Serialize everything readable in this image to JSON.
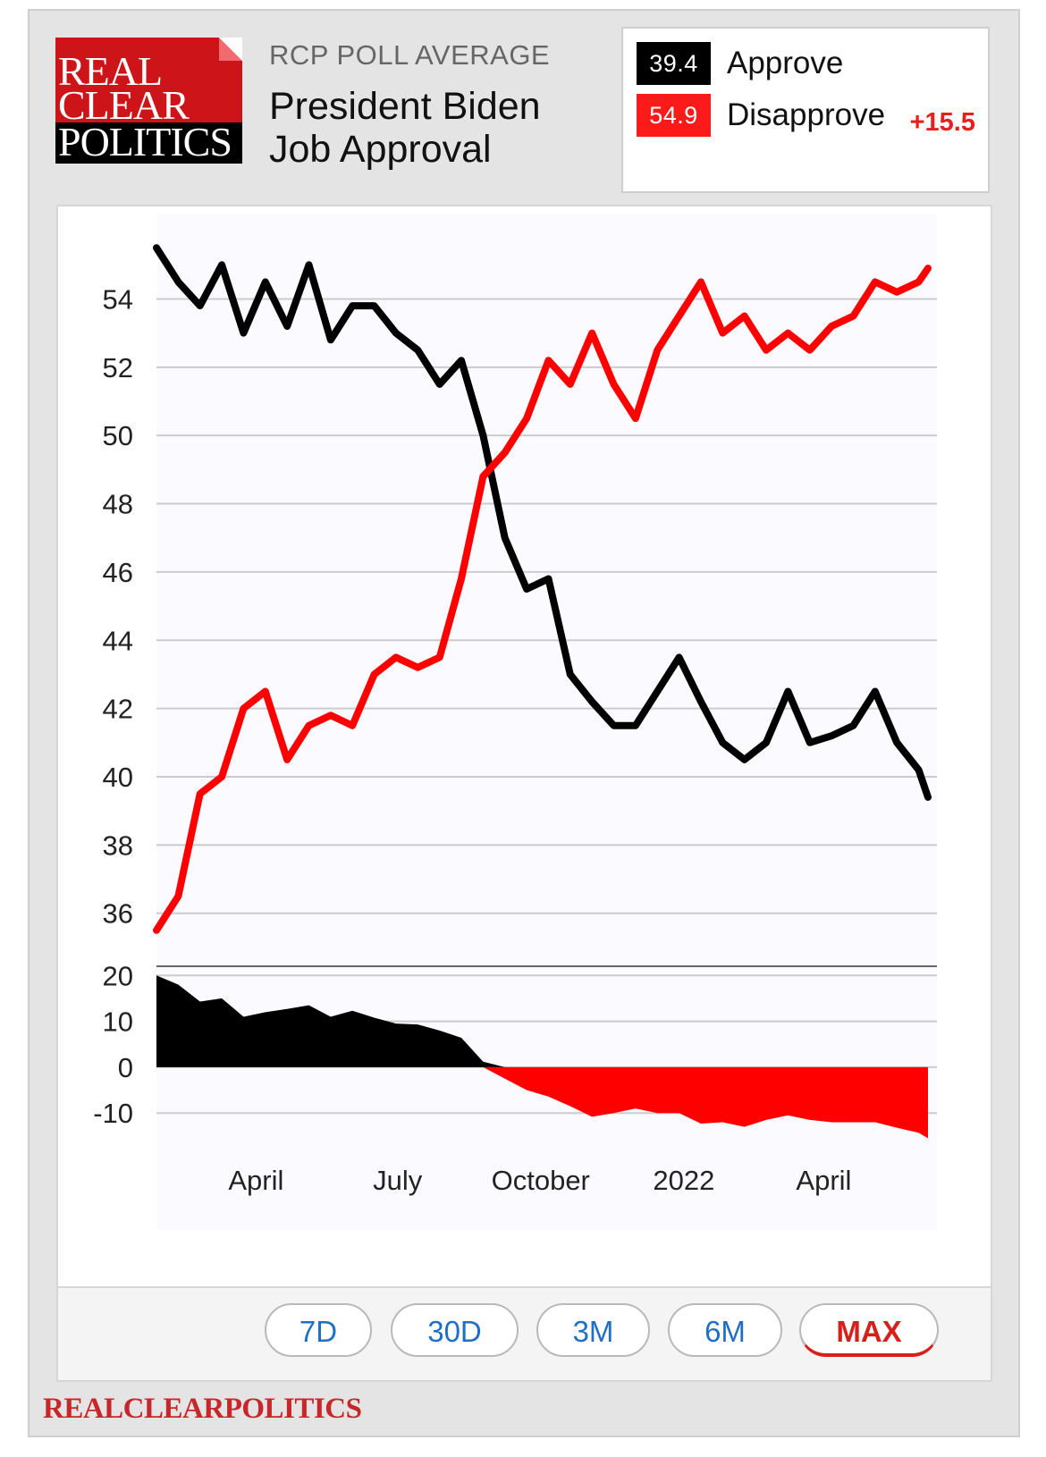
{
  "header": {
    "logo_line1": "REAL",
    "logo_line2": "CLEAR",
    "logo_line3": "POLITICS",
    "subtitle": "RCP POLL AVERAGE",
    "title_line1": "President Biden",
    "title_line2": "Job Approval"
  },
  "legend": {
    "approve_value": "39.4",
    "approve_label": "Approve",
    "disapprove_value": "54.9",
    "disapprove_label": "Disapprove",
    "spread": "+15.5"
  },
  "colors": {
    "approve": "#000000",
    "disapprove": "#ff0000",
    "accent": "#d91e1b",
    "button_text": "#1f6fc8"
  },
  "range_buttons": [
    {
      "label": "7D",
      "active": false
    },
    {
      "label": "30D",
      "active": false
    },
    {
      "label": "3M",
      "active": false
    },
    {
      "label": "6M",
      "active": false
    },
    {
      "label": "MAX",
      "active": true
    }
  ],
  "footer": "REALCLEARPOLITICS",
  "chart_data": {
    "type": "line",
    "title": "President Biden Job Approval",
    "ylim": [
      34.5,
      56.5
    ],
    "yticks": [
      36,
      38,
      40,
      42,
      44,
      46,
      48,
      50,
      52,
      54
    ],
    "x": [
      "2021-01-27",
      "2021-02-10",
      "2021-02-24",
      "2021-03-10",
      "2021-03-24",
      "2021-04-07",
      "2021-04-21",
      "2021-05-05",
      "2021-05-19",
      "2021-06-02",
      "2021-06-16",
      "2021-06-30",
      "2021-07-14",
      "2021-07-28",
      "2021-08-11",
      "2021-08-25",
      "2021-09-08",
      "2021-09-22",
      "2021-10-06",
      "2021-10-20",
      "2021-11-03",
      "2021-11-17",
      "2021-12-01",
      "2021-12-15",
      "2021-12-29",
      "2022-01-12",
      "2022-01-26",
      "2022-02-09",
      "2022-02-23",
      "2022-03-09",
      "2022-03-23",
      "2022-04-06",
      "2022-04-20",
      "2022-05-04",
      "2022-05-18",
      "2022-06-01",
      "2022-06-07"
    ],
    "x_tick_labels": [
      {
        "label": "April",
        "date": "2021-04-01"
      },
      {
        "label": "July",
        "date": "2021-07-01"
      },
      {
        "label": "October",
        "date": "2021-10-01"
      },
      {
        "label": "2022",
        "date": "2022-01-01"
      },
      {
        "label": "April",
        "date": "2022-04-01"
      }
    ],
    "series": [
      {
        "name": "Approve",
        "values": [
          55.5,
          54.5,
          53.8,
          55.0,
          53.0,
          54.5,
          53.2,
          55.0,
          52.8,
          53.8,
          53.8,
          53.0,
          52.5,
          51.5,
          52.2,
          50.0,
          47.0,
          45.5,
          45.8,
          43.0,
          42.2,
          41.5,
          41.5,
          42.5,
          43.5,
          42.2,
          41.0,
          40.5,
          41.0,
          42.5,
          41.0,
          41.2,
          41.5,
          42.5,
          41.0,
          40.2,
          39.4
        ]
      },
      {
        "name": "Disapprove",
        "values": [
          35.5,
          36.5,
          39.5,
          40.0,
          42.0,
          42.5,
          40.5,
          41.5,
          41.8,
          41.5,
          43.0,
          43.5,
          43.2,
          43.5,
          45.8,
          48.8,
          49.5,
          50.5,
          52.2,
          51.5,
          53.0,
          51.5,
          50.5,
          52.5,
          53.5,
          54.5,
          53.0,
          53.5,
          52.5,
          53.0,
          52.5,
          53.2,
          53.5,
          54.5,
          54.2,
          54.5,
          54.9
        ]
      }
    ],
    "spread_panel": {
      "type": "area",
      "ylim": [
        -16,
        22
      ],
      "yticks": [
        20,
        10,
        0,
        -10
      ],
      "series": {
        "name": "Spread",
        "values": [
          20.0,
          18.0,
          14.3,
          15.0,
          11.0,
          12.0,
          12.7,
          13.5,
          11.0,
          12.3,
          10.8,
          9.5,
          9.3,
          8.0,
          6.4,
          1.2,
          -2.5,
          -5.0,
          -6.4,
          -8.5,
          -10.8,
          -10.0,
          -9.0,
          -10.0,
          -10.0,
          -12.3,
          -12.0,
          -13.0,
          -11.5,
          -10.5,
          -11.5,
          -12.0,
          -12.0,
          -12.0,
          -13.2,
          -14.3,
          -15.5
        ]
      }
    }
  }
}
